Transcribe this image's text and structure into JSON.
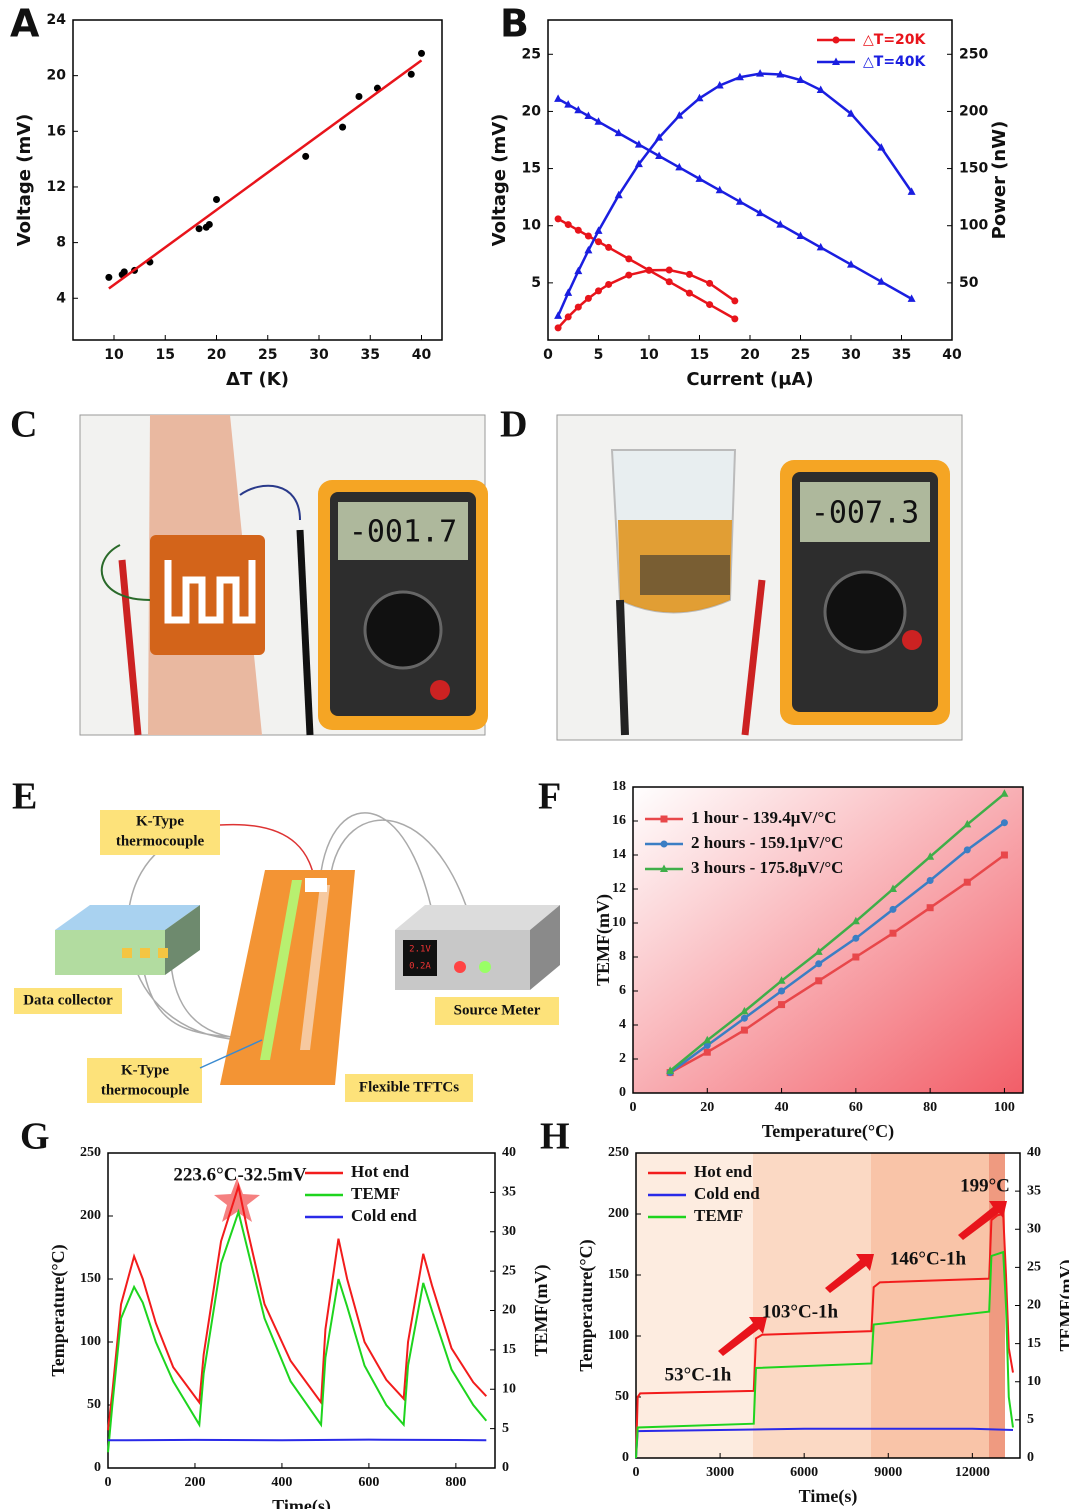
{
  "chart_data": [
    {
      "label": "A",
      "type": "scatter",
      "xlabel": "ΔT (K)",
      "ylabel": "Voltage (mV)",
      "xlim": [
        6,
        42
      ],
      "ylim": [
        1,
        24
      ],
      "xticks": [
        10,
        15,
        20,
        25,
        30,
        35,
        40
      ],
      "yticks": [
        4,
        8,
        12,
        16,
        20,
        24
      ],
      "series": [
        {
          "color": "#000000",
          "marker": "circle",
          "line": false,
          "x": [
            9.5,
            10.8,
            11,
            12,
            13.5,
            18.3,
            19,
            19.3,
            20,
            28.7,
            32.3,
            33.9,
            35.7,
            39,
            40
          ],
          "values": [
            5.5,
            5.7,
            5.9,
            6.0,
            6.6,
            9.0,
            9.1,
            9.3,
            11.1,
            14.2,
            16.3,
            18.5,
            19.1,
            20.1,
            21.6
          ]
        },
        {
          "color": "#e8141b",
          "marker": "none",
          "line": true,
          "x": [
            9.5,
            40
          ],
          "values": [
            4.7,
            21.1
          ]
        }
      ]
    },
    {
      "label": "B",
      "type": "line",
      "xlabel": "Current (μA)",
      "ylabel": "Voltage (mV)",
      "y2label": "Power (nW)",
      "xlim": [
        0,
        40
      ],
      "ylim": [
        0,
        28
      ],
      "y2lim": [
        0,
        280
      ],
      "xticks": [
        0,
        5,
        10,
        15,
        20,
        25,
        30,
        35,
        40
      ],
      "yticks": [
        5,
        10,
        15,
        20,
        25
      ],
      "y2ticks": [
        50,
        100,
        150,
        200,
        250
      ],
      "legend": "top-right",
      "series": [
        {
          "name": "△T=20K",
          "color": "#e8141b",
          "marker": "circle",
          "line": true,
          "x": [
            1,
            2,
            3,
            4,
            5,
            6,
            8,
            10,
            12,
            14,
            16,
            18.5
          ],
          "values": [
            10.6,
            10.1,
            9.6,
            9.1,
            8.6,
            8.1,
            7.1,
            6.1,
            5.1,
            4.1,
            3.1,
            1.85
          ]
        },
        {
          "name": "△T=40K",
          "color": "#1a1ee0",
          "marker": "triangle",
          "line": true,
          "x": [
            1,
            2,
            3,
            4,
            5,
            7,
            9,
            11,
            13,
            15,
            17,
            19,
            21,
            23,
            25,
            27,
            30,
            33,
            36
          ],
          "values": [
            21.1,
            20.6,
            20.1,
            19.6,
            19.1,
            18.1,
            17.1,
            16.1,
            15.1,
            14.1,
            13.1,
            12.1,
            11.1,
            10.1,
            9.1,
            8.1,
            6.6,
            5.1,
            3.6
          ]
        },
        {
          "color": "#e8141b",
          "marker": "circle",
          "line": true,
          "axis": "y2",
          "x": [
            1,
            2,
            3,
            4,
            5,
            6,
            8,
            10,
            12,
            14,
            16,
            18.5
          ],
          "values": [
            10.6,
            20.2,
            28.8,
            36.4,
            43,
            48.6,
            56.8,
            61,
            61.2,
            57.4,
            49.6,
            34.2
          ]
        },
        {
          "color": "#1a1ee0",
          "marker": "triangle",
          "line": true,
          "axis": "y2",
          "x": [
            1,
            2,
            3,
            4,
            5,
            7,
            9,
            11,
            13,
            15,
            17,
            19,
            21,
            23,
            25,
            27,
            30,
            33,
            36
          ],
          "values": [
            21.1,
            41.2,
            60.3,
            78.4,
            95.5,
            126.7,
            153.9,
            177.1,
            196.3,
            211.5,
            222.7,
            229.9,
            233.1,
            232.3,
            227.5,
            218.7,
            198,
            168.3,
            129.6
          ]
        }
      ]
    },
    {
      "label": "F",
      "type": "line",
      "xlabel": "Temperature(°C)",
      "ylabel": "TEMF(mV)",
      "xlim": [
        0,
        105
      ],
      "ylim": [
        0,
        18
      ],
      "xticks": [
        0,
        20,
        40,
        60,
        80,
        100
      ],
      "yticks": [
        0,
        2,
        4,
        6,
        8,
        10,
        12,
        14,
        16,
        18
      ],
      "legend": "top-left",
      "series": [
        {
          "name": "1 hour  - 139.4μV/°C",
          "color": "#e8474a",
          "marker": "square",
          "line": true,
          "x": [
            10,
            20,
            30,
            40,
            50,
            60,
            70,
            80,
            90,
            100
          ],
          "values": [
            1.2,
            2.4,
            3.7,
            5.2,
            6.6,
            8.0,
            9.4,
            10.9,
            12.4,
            14.0
          ]
        },
        {
          "name": "2 hours - 159.1μV/°C",
          "color": "#3b7ec4",
          "marker": "circle",
          "line": true,
          "x": [
            10,
            20,
            30,
            40,
            50,
            60,
            70,
            80,
            90,
            100
          ],
          "values": [
            1.2,
            2.8,
            4.4,
            6.0,
            7.6,
            9.1,
            10.8,
            12.5,
            14.3,
            15.9
          ]
        },
        {
          "name": "3 hours - 175.8μV/°C",
          "color": "#3fae49",
          "marker": "triangle",
          "line": true,
          "x": [
            10,
            20,
            30,
            40,
            50,
            60,
            70,
            80,
            90,
            100
          ],
          "values": [
            1.3,
            3.1,
            4.8,
            6.6,
            8.3,
            10.1,
            12.0,
            13.9,
            15.8,
            17.6
          ]
        }
      ]
    },
    {
      "label": "G",
      "type": "line",
      "xlabel": "Time(s)",
      "ylabel": "Temperature(°C)",
      "y2label": "TEMF(mV)",
      "xlim": [
        0,
        890
      ],
      "ylim": [
        0,
        250
      ],
      "y2lim": [
        0,
        40
      ],
      "xticks": [
        0,
        200,
        400,
        600,
        800
      ],
      "yticks": [
        0,
        50,
        100,
        150,
        200,
        250
      ],
      "y2ticks": [
        0,
        5,
        10,
        15,
        20,
        25,
        30,
        35,
        40
      ],
      "legend": "top-right",
      "annotations": [
        "223.6°C-32.5mV"
      ],
      "series": [
        {
          "name": "Hot end",
          "color": "#f21c1c",
          "marker": "none",
          "line": true,
          "x": [
            0,
            10,
            30,
            60,
            80,
            110,
            150,
            210,
            220,
            260,
            300,
            320,
            360,
            420,
            490,
            500,
            530,
            550,
            590,
            640,
            680,
            690,
            725,
            745,
            790,
            840,
            870
          ],
          "values": [
            30,
            60,
            130,
            168,
            150,
            115,
            80,
            52,
            90,
            180,
            223.6,
            190,
            130,
            85,
            52,
            110,
            182,
            150,
            100,
            70,
            55,
            100,
            170,
            145,
            95,
            68,
            57
          ]
        },
        {
          "name": "TEMF",
          "color": "#1ed41e",
          "marker": "none",
          "line": true,
          "axis": "y2",
          "x": [
            0,
            10,
            30,
            60,
            80,
            110,
            150,
            210,
            220,
            260,
            300,
            320,
            360,
            420,
            490,
            500,
            530,
            550,
            590,
            640,
            680,
            690,
            725,
            745,
            790,
            840,
            870
          ],
          "values": [
            2,
            8,
            19,
            23,
            21,
            16,
            11,
            5.5,
            12,
            26,
            32.5,
            28,
            19,
            11,
            5.5,
            14,
            24,
            20.5,
            13,
            8,
            5.5,
            13,
            23.5,
            20,
            12.5,
            8,
            6
          ]
        },
        {
          "name": "Cold end",
          "color": "#2a2ae8",
          "marker": "none",
          "line": true,
          "x": [
            0,
            200,
            400,
            600,
            800,
            870
          ],
          "values": [
            22,
            22.3,
            22,
            22.5,
            22.2,
            22
          ]
        }
      ]
    },
    {
      "label": "H",
      "type": "line",
      "xlabel": "Time(s)",
      "ylabel": "Temperature(°C)",
      "y2label": "TEMF(mV)",
      "xlim": [
        0,
        13700
      ],
      "ylim": [
        0,
        250
      ],
      "y2lim": [
        0,
        40
      ],
      "xticks": [
        0,
        3000,
        6000,
        9000,
        12000
      ],
      "yticks": [
        0,
        50,
        100,
        150,
        200,
        250
      ],
      "y2ticks": [
        0,
        5,
        10,
        15,
        20,
        25,
        30,
        35,
        40
      ],
      "legend": "top-left",
      "annotations": [
        "53°C-1h",
        "103°C-1h",
        "146°C-1h",
        "199°C"
      ],
      "series": [
        {
          "name": "Hot end",
          "color": "#f21c1c",
          "marker": "none",
          "line": true,
          "x": [
            0,
            60,
            150,
            4200,
            4280,
            4500,
            8400,
            8480,
            8700,
            12600,
            12680,
            12900,
            13100,
            13200,
            13300,
            13450
          ],
          "values": [
            0,
            50,
            53,
            55,
            98,
            101,
            104,
            140,
            144,
            147,
            195,
            199,
            200,
            150,
            90,
            70
          ]
        },
        {
          "name": "Cold end",
          "color": "#2a2ae8",
          "marker": "none",
          "line": true,
          "x": [
            0,
            60,
            3000,
            6000,
            9000,
            12000,
            13450
          ],
          "values": [
            0,
            22,
            23,
            24,
            24,
            24,
            23
          ]
        },
        {
          "name": "TEMF",
          "color": "#1ed41e",
          "marker": "none",
          "line": true,
          "axis": "y2",
          "x": [
            0,
            60,
            4200,
            4280,
            8400,
            8480,
            12600,
            12680,
            13100,
            13200,
            13300,
            13450
          ],
          "values": [
            0,
            4,
            4.5,
            11.8,
            12.4,
            17.5,
            19.2,
            26.5,
            27,
            20,
            8,
            4
          ]
        }
      ]
    }
  ],
  "photos": [
    {
      "label": "C",
      "display": "-001.7"
    },
    {
      "label": "D",
      "display": "-007.3"
    }
  ],
  "diagram": {
    "label": "E",
    "thermocouple_top": [
      "K-Type",
      "thermocouple"
    ],
    "data_collector": "Data collector",
    "source_meter": "Source Meter",
    "thermocouple_bottom": [
      "K-Type",
      "thermocouple"
    ],
    "device": "Flexible TFTCs",
    "meter_display": [
      "2.1V",
      "0.2A"
    ]
  }
}
